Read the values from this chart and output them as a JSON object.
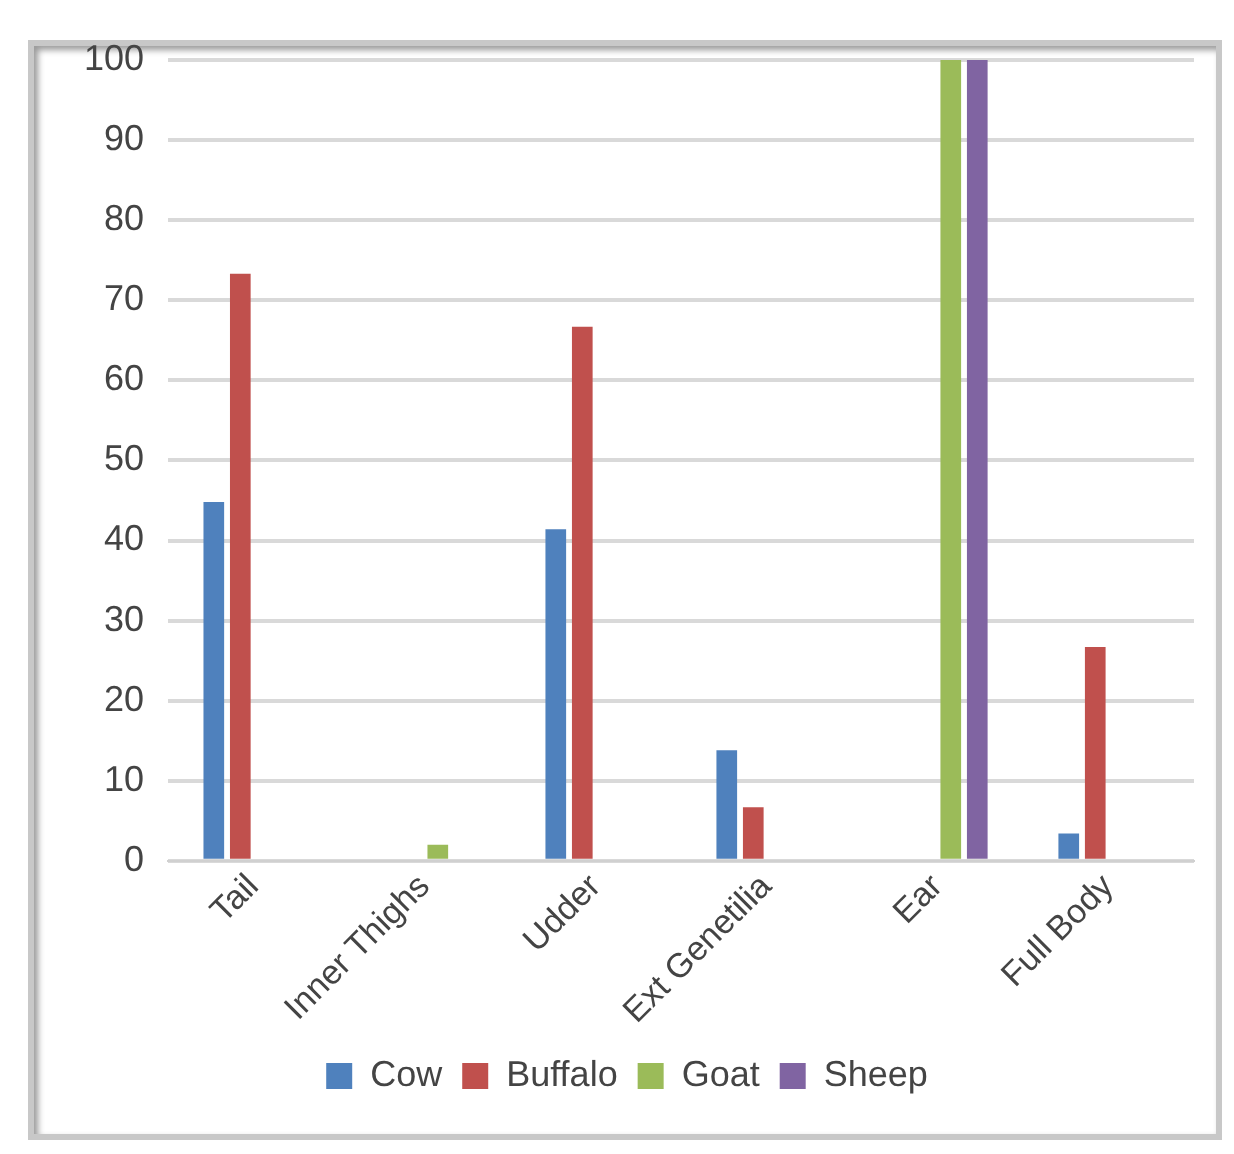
{
  "chart_data": {
    "type": "bar",
    "categories": [
      "Tail",
      "Inner Thighs",
      "Udder",
      "Ext Genetilia",
      "Ear",
      "Full Body"
    ],
    "series": [
      {
        "name": "Cow",
        "color": "#4f81bd",
        "values": [
          44.8,
          0,
          41.4,
          13.8,
          0,
          3.4
        ]
      },
      {
        "name": "Buffalo",
        "color": "#c0504d",
        "values": [
          73.3,
          0,
          66.7,
          6.7,
          0,
          26.7
        ]
      },
      {
        "name": "Goat",
        "color": "#9bbb59",
        "values": [
          0,
          2,
          0,
          0,
          100,
          0
        ]
      },
      {
        "name": "Sheep",
        "color": "#8064a2",
        "values": [
          0,
          0,
          0,
          0,
          100,
          0
        ]
      }
    ],
    "ylim": [
      0,
      100
    ],
    "yticks": [
      0,
      10,
      20,
      30,
      40,
      50,
      60,
      70,
      80,
      90,
      100
    ],
    "grid": "y",
    "legend": "bottom"
  }
}
